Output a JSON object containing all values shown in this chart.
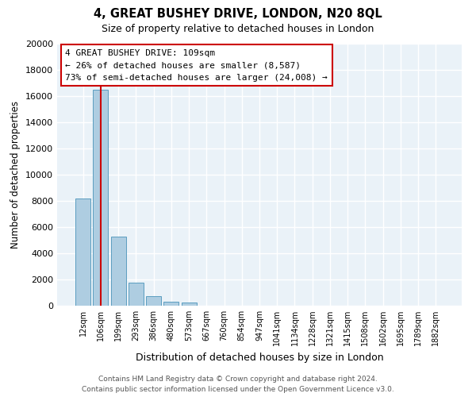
{
  "title": "4, GREAT BUSHEY DRIVE, LONDON, N20 8QL",
  "subtitle": "Size of property relative to detached houses in London",
  "xlabel": "Distribution of detached houses by size in London",
  "ylabel": "Number of detached properties",
  "bar_labels": [
    "12sqm",
    "106sqm",
    "199sqm",
    "293sqm",
    "386sqm",
    "480sqm",
    "573sqm",
    "667sqm",
    "760sqm",
    "854sqm",
    "947sqm",
    "1041sqm",
    "1134sqm",
    "1228sqm",
    "1321sqm",
    "1415sqm",
    "1508sqm",
    "1602sqm",
    "1695sqm",
    "1789sqm",
    "1882sqm"
  ],
  "bar_values": [
    8200,
    16500,
    5300,
    1750,
    750,
    280,
    250,
    0,
    0,
    0,
    0,
    0,
    0,
    0,
    0,
    0,
    0,
    0,
    0,
    0,
    0
  ],
  "bar_color": "#aecde1",
  "bar_edge_color": "#5b9dc0",
  "property_label": "4 GREAT BUSHEY DRIVE: 109sqm",
  "annotation_line1": "← 26% of detached houses are smaller (8,587)",
  "annotation_line2": "73% of semi-detached houses are larger (24,008) →",
  "vline_color": "#cc0000",
  "annotation_box_color": "#ffffff",
  "annotation_box_edge": "#cc0000",
  "ylim": [
    0,
    20000
  ],
  "yticks": [
    0,
    2000,
    4000,
    6000,
    8000,
    10000,
    12000,
    14000,
    16000,
    18000,
    20000
  ],
  "bg_color": "#eaf2f8",
  "grid_color": "#ffffff",
  "fig_bg_color": "#ffffff",
  "footer_line1": "Contains HM Land Registry data © Crown copyright and database right 2024.",
  "footer_line2": "Contains public sector information licensed under the Open Government Licence v3.0."
}
